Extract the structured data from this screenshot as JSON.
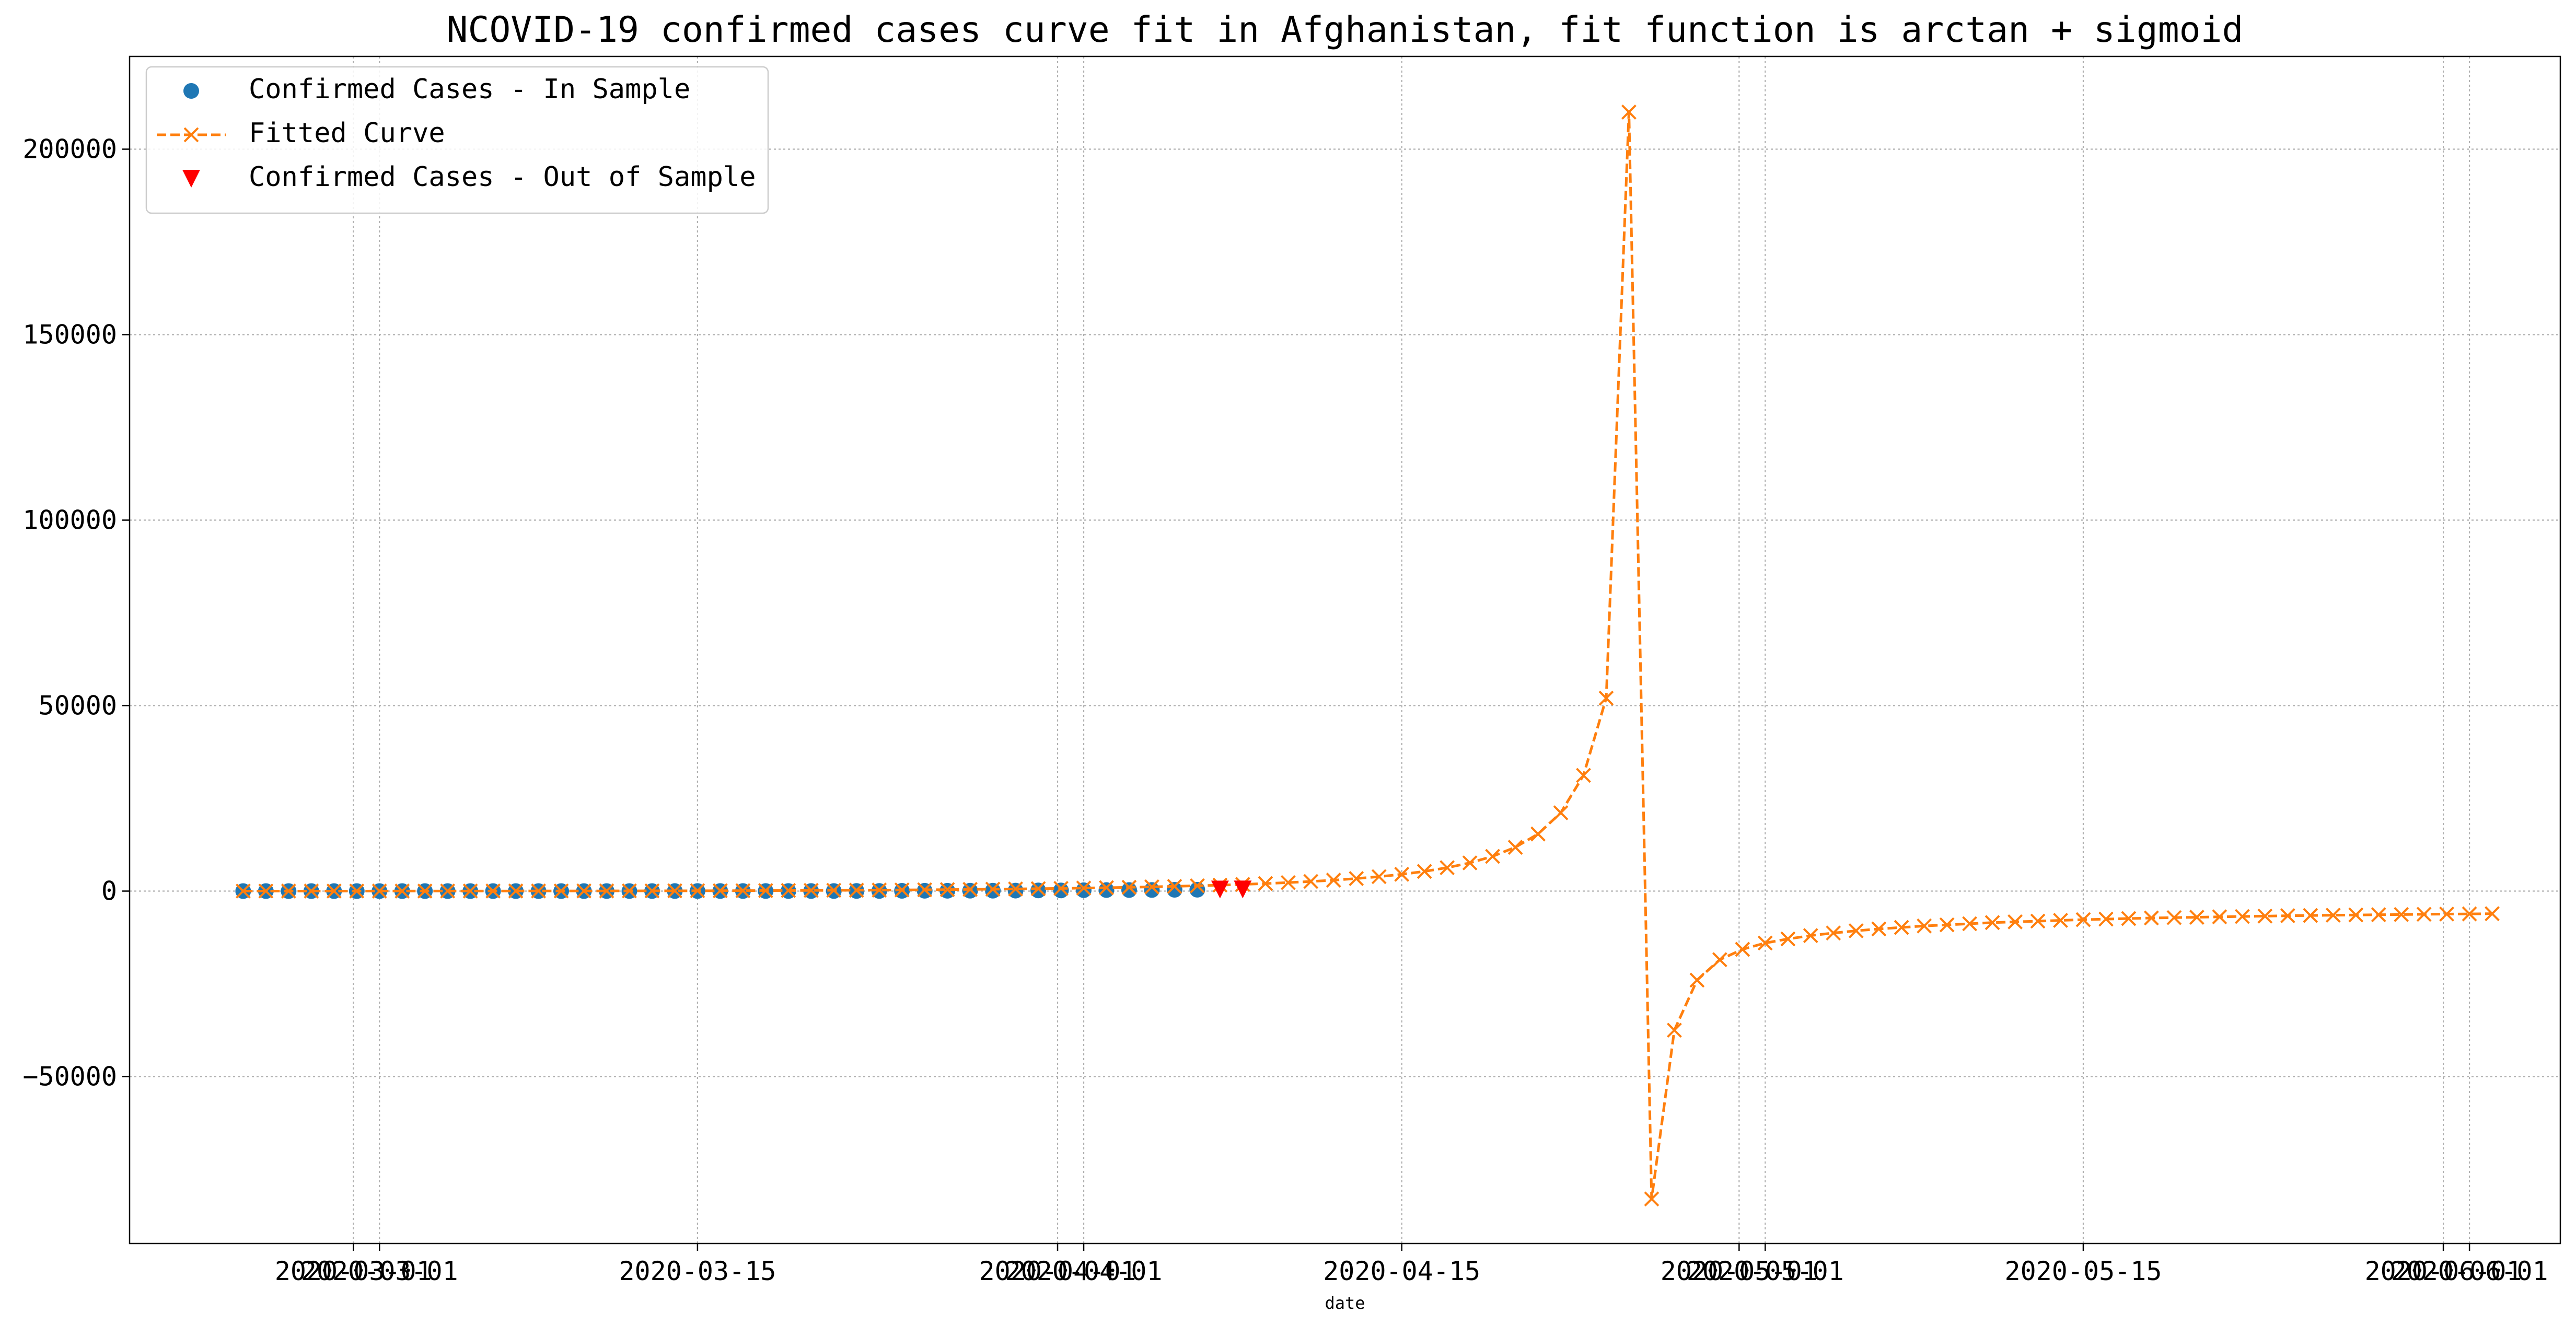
{
  "chart_data": {
    "type": "line",
    "title": "NCOVID-19 confirmed cases curve fit in Afghanistan, fit function is arctan + sigmoid",
    "xlabel": "date",
    "ylabel": "",
    "x_start": "2020-02-24",
    "x_end": "2020-06-02",
    "xlim": [
      "2020-02-19",
      "2020-06-05"
    ],
    "ylim": [
      -95000,
      225000
    ],
    "grid": true,
    "legend_position": "top-left",
    "x_ticks": [
      "2020-03-01",
      "2020-03-01",
      "2020-03-15",
      "2020-04-01",
      "2020-04-01",
      "2020-04-15",
      "2020-05-01",
      "2020-05-01",
      "2020-05-15",
      "2020-06-01",
      "2020-06-01"
    ],
    "x_tick_labels": [
      "2020-03-01",
      "2020-03-01",
      "2020-03-15",
      "2020-04-01",
      "2020-04-01",
      "2020-04-15",
      "2020-05-01",
      "2020-05-01",
      "2020-05-15",
      "2020-06-01",
      "2020-06-01"
    ],
    "y_ticks": [
      -50000,
      0,
      50000,
      100000,
      150000,
      200000
    ],
    "y_tick_labels": [
      "−50000",
      "0",
      "50000",
      "100000",
      "150000",
      "200000"
    ],
    "series": [
      {
        "name": "Confirmed Cases - In Sample",
        "marker": "circle",
        "color": "#1f77b4",
        "x": [
          "2020-02-24",
          "2020-02-25",
          "2020-02-26",
          "2020-02-27",
          "2020-02-28",
          "2020-02-29",
          "2020-03-01",
          "2020-03-02",
          "2020-03-03",
          "2020-03-04",
          "2020-03-05",
          "2020-03-06",
          "2020-03-07",
          "2020-03-08",
          "2020-03-09",
          "2020-03-10",
          "2020-03-11",
          "2020-03-12",
          "2020-03-13",
          "2020-03-14",
          "2020-03-15",
          "2020-03-16",
          "2020-03-17",
          "2020-03-18",
          "2020-03-19",
          "2020-03-20",
          "2020-03-21",
          "2020-03-22",
          "2020-03-23",
          "2020-03-24",
          "2020-03-25",
          "2020-03-26",
          "2020-03-27",
          "2020-03-28",
          "2020-03-29",
          "2020-03-30",
          "2020-03-31",
          "2020-04-01",
          "2020-04-02",
          "2020-04-03",
          "2020-04-04",
          "2020-04-05",
          "2020-04-06"
        ],
        "values": [
          1,
          1,
          1,
          1,
          1,
          1,
          1,
          1,
          1,
          1,
          1,
          1,
          1,
          4,
          4,
          5,
          7,
          7,
          7,
          11,
          16,
          21,
          22,
          22,
          22,
          24,
          24,
          40,
          40,
          74,
          84,
          94,
          110,
          110,
          120,
          170,
          174,
          237,
          273,
          281,
          299,
          349,
          367
        ]
      },
      {
        "name": "Fitted Curve",
        "marker": "x",
        "line": "dashed",
        "color": "#ff7f0e",
        "x": [
          "2020-02-24",
          "2020-02-25",
          "2020-02-26",
          "2020-02-27",
          "2020-02-28",
          "2020-02-29",
          "2020-03-01",
          "2020-03-02",
          "2020-03-03",
          "2020-03-04",
          "2020-03-05",
          "2020-03-06",
          "2020-03-07",
          "2020-03-08",
          "2020-03-09",
          "2020-03-10",
          "2020-03-11",
          "2020-03-12",
          "2020-03-13",
          "2020-03-14",
          "2020-03-15",
          "2020-03-16",
          "2020-03-17",
          "2020-03-18",
          "2020-03-19",
          "2020-03-20",
          "2020-03-21",
          "2020-03-22",
          "2020-03-23",
          "2020-03-24",
          "2020-03-25",
          "2020-03-26",
          "2020-03-27",
          "2020-03-28",
          "2020-03-29",
          "2020-03-30",
          "2020-03-31",
          "2020-04-01",
          "2020-04-02",
          "2020-04-03",
          "2020-04-04",
          "2020-04-05",
          "2020-04-06",
          "2020-04-07",
          "2020-04-08",
          "2020-04-09",
          "2020-04-10",
          "2020-04-11",
          "2020-04-12",
          "2020-04-13",
          "2020-04-14",
          "2020-04-15",
          "2020-04-16",
          "2020-04-17",
          "2020-04-18",
          "2020-04-19",
          "2020-04-20",
          "2020-04-21",
          "2020-04-22",
          "2020-04-23",
          "2020-04-24",
          "2020-04-25",
          "2020-04-26",
          "2020-04-27",
          "2020-04-28",
          "2020-04-29",
          "2020-04-30",
          "2020-05-01",
          "2020-05-02",
          "2020-05-03",
          "2020-05-04",
          "2020-05-05",
          "2020-05-06",
          "2020-05-07",
          "2020-05-08",
          "2020-05-09",
          "2020-05-10",
          "2020-05-11",
          "2020-05-12",
          "2020-05-13",
          "2020-05-14",
          "2020-05-15",
          "2020-05-16",
          "2020-05-17",
          "2020-05-18",
          "2020-05-19",
          "2020-05-20",
          "2020-05-21",
          "2020-05-22",
          "2020-05-23",
          "2020-05-24",
          "2020-05-25",
          "2020-05-26",
          "2020-05-27",
          "2020-05-28",
          "2020-05-29",
          "2020-05-30",
          "2020-05-31",
          "2020-06-01",
          "2020-06-02"
        ],
        "values": [
          2,
          3,
          4,
          5,
          6,
          7,
          9,
          11,
          13,
          15,
          18,
          21,
          25,
          29,
          34,
          40,
          47,
          55,
          64,
          75,
          88,
          102,
          118,
          136,
          157,
          181,
          208,
          238,
          272,
          310,
          352,
          398,
          450,
          508,
          572,
          643,
          722,
          810,
          908,
          1017,
          1139,
          1276,
          1430,
          1604,
          1802,
          2029,
          2290,
          2593,
          2950,
          3376,
          3890,
          4520,
          5305,
          6304,
          7607,
          9360,
          11810,
          15400,
          21100,
          31200,
          52000,
          210000,
          -83000,
          -37500,
          -24000,
          -18500,
          -15700,
          -14000,
          -12900,
          -12000,
          -11300,
          -10700,
          -10200,
          -9800,
          -9400,
          -9100,
          -8800,
          -8500,
          -8300,
          -8100,
          -7900,
          -7700,
          -7550,
          -7400,
          -7250,
          -7150,
          -7050,
          -6950,
          -6850,
          -6750,
          -6650,
          -6580,
          -6510,
          -6440,
          -6380,
          -6320,
          -6260,
          -6200,
          -6150,
          -6100
        ]
      },
      {
        "name": "Confirmed Cases - Out of Sample",
        "marker": "triangle-down",
        "color": "#ff0000",
        "x": [
          "2020-04-07",
          "2020-04-08"
        ],
        "values": [
          423,
          444
        ]
      }
    ]
  }
}
